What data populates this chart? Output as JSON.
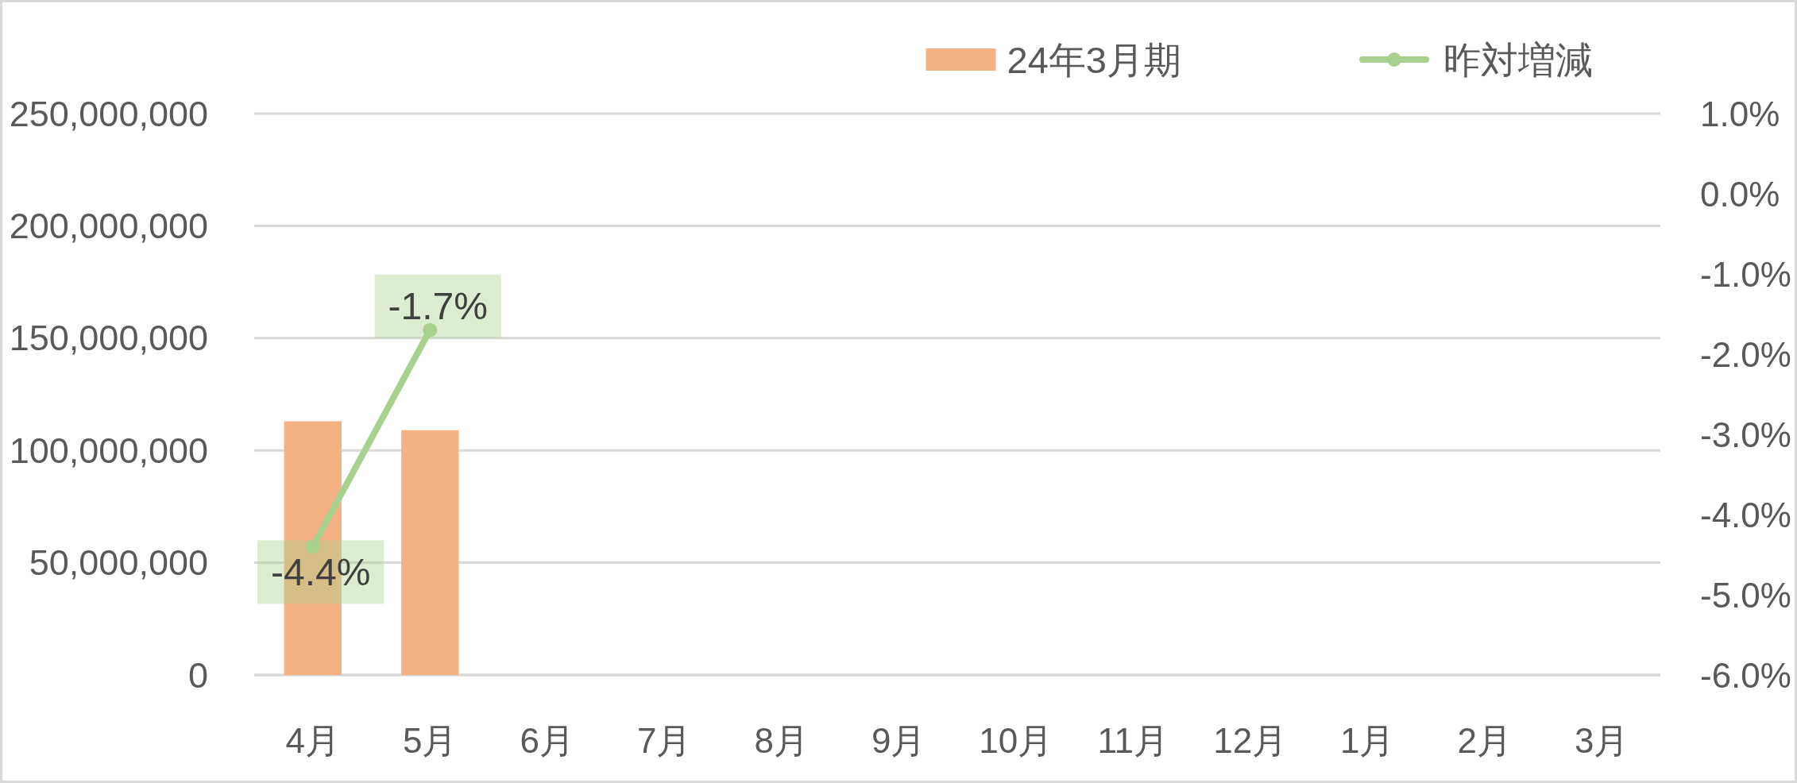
{
  "chart_data": {
    "type": "bar",
    "categories": [
      "4月",
      "5月",
      "6月",
      "7月",
      "8月",
      "9月",
      "10月",
      "11月",
      "12月",
      "1月",
      "2月",
      "3月"
    ],
    "series": [
      {
        "name": "24年3月期",
        "color": "#f4b183",
        "values": [
          113000000,
          109000000,
          null,
          null,
          null,
          null,
          null,
          null,
          null,
          null,
          null,
          null
        ]
      },
      {
        "name": "昨対増減",
        "type": "line",
        "axis": "y2",
        "color": "#a9d18e",
        "values": [
          -4.4,
          -1.7,
          null,
          null,
          null,
          null,
          null,
          null,
          null,
          null,
          null,
          null
        ],
        "value_labels": [
          "-4.4%",
          "-1.7%",
          null,
          null,
          null,
          null,
          null,
          null,
          null,
          null,
          null,
          null
        ]
      }
    ],
    "ylim": [
      0,
      250000000
    ],
    "yticks": [
      0,
      {
        "value": 50000000,
        "label": "50,000,000"
      },
      {
        "value": 100000000,
        "label": "100,000,000"
      },
      {
        "value": 150000000,
        "label": "150,000,000"
      },
      {
        "value": 200000000,
        "label": "200,000,000"
      },
      {
        "value": 250000000,
        "label": "250,000,000"
      }
    ],
    "y2lim": [
      -6,
      1
    ],
    "y2ticks": [
      {
        "value": -6,
        "label": "-6.0%"
      },
      {
        "value": -5,
        "label": "-5.0%"
      },
      {
        "value": -4,
        "label": "-4.0%"
      },
      {
        "value": -3,
        "label": "-3.0%"
      },
      {
        "value": -2,
        "label": "-2.0%"
      },
      {
        "value": -1,
        "label": "-1.0%"
      },
      {
        "value": 0,
        "label": "0.0%"
      },
      {
        "value": 1,
        "label": "1.0%"
      }
    ],
    "grid": "y",
    "legend": "top right",
    "marker": "circle"
  }
}
